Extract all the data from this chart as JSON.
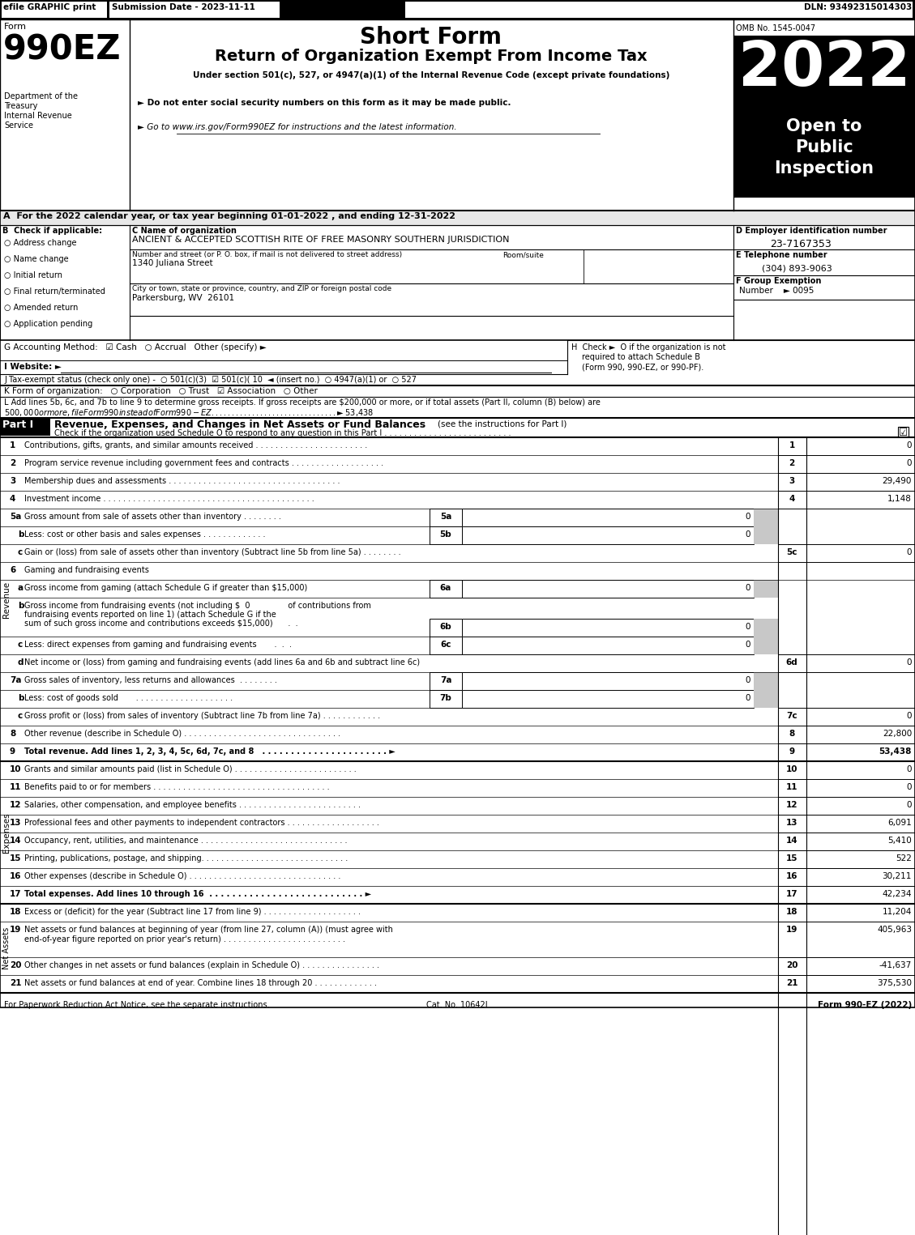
{
  "header_bar": {
    "efile": "efile GRAPHIC print",
    "submission": "Submission Date - 2023-11-11",
    "dln": "DLN: 93492315014303"
  },
  "form_title": "Short Form",
  "form_subtitle": "Return of Organization Exempt From Income Tax",
  "under_section": "Under section 501(c), 527, or 4947(a)(1) of the Internal Revenue Code (except private foundations)",
  "form_number": "990EZ",
  "year": "2022",
  "omb": "OMB No. 1545-0047",
  "dept_lines": [
    "Department of the",
    "Treasury",
    "Internal Revenue",
    "Service"
  ],
  "bullet1": "► Do not enter social security numbers on this form as it may be made public.",
  "bullet2": "► Go to www.irs.gov/Form990EZ for instructions and the latest information.",
  "section_a": "A  For the 2022 calendar year, or tax year beginning 01-01-2022 , and ending 12-31-2022",
  "checkboxes_b": [
    "Address change",
    "Name change",
    "Initial return",
    "Final return/terminated",
    "Amended return",
    "Application pending"
  ],
  "org_name": "ANCIENT & ACCEPTED SCOTTISH RITE OF FREE MASONRY SOUTHERN JURISDICTION",
  "street_label": "Number and street (or P. O. box, if mail is not delivered to street address)",
  "room_label": "Room/suite",
  "street": "1340 Juliana Street",
  "city_label": "City or town, state or province, country, and ZIP or foreign postal code",
  "city": "Parkersburg, WV  26101",
  "ein_label": "D Employer identification number",
  "ein": "23-7167353",
  "phone_label": "E Telephone number",
  "phone": "(304) 893-9063",
  "fgroup_label": "F Group Exemption",
  "group_num": "Number    ► 0095",
  "section_g": "G Accounting Method:   ☑ Cash   ○ Accrual   Other (specify) ►",
  "section_h_lines": [
    "H  Check ►  O if the organization is not",
    "required to attach Schedule B",
    "(Form 990, 990-EZ, or 990-PF)."
  ],
  "section_i": "I Website: ►",
  "section_j": "J Tax-exempt status (check only one) -  ○ 501(c)(3)  ☑ 501(c)( 10  ◄ (insert no.)  ○ 4947(a)(1) or  ○ 527",
  "section_k": "K Form of organization:   ○ Corporation   ○ Trust   ☑ Association   ○ Other",
  "section_l1": "L Add lines 5b, 6c, and 7b to line 9 to determine gross receipts. If gross receipts are $200,000 or more, or if total assets (Part II, column (B) below) are",
  "section_l2": "$500,000 or more, file Form 990 instead of Form 990-EZ . . . . . . . . . . . . . . . . . . . . . . . . . . . . . . . ► $ 53,438",
  "part1_title": "Revenue, Expenses, and Changes in Net Assets or Fund Balances",
  "part1_sub": "(see the instructions for Part I)",
  "part1_check": "Check if the organization used Schedule O to respond to any question in this Part I . . . . . . . . . . . . . . . . . . . . . . . . . .",
  "revenue_lines": [
    {
      "num": "1",
      "desc": "Contributions, gifts, grants, and similar amounts received . . . . . . . . . . . . . . . . . . . . . . .",
      "line": "1",
      "value": "0"
    },
    {
      "num": "2",
      "desc": "Program service revenue including government fees and contracts . . . . . . . . . . . . . . . . . . .",
      "line": "2",
      "value": "0"
    },
    {
      "num": "3",
      "desc": "Membership dues and assessments . . . . . . . . . . . . . . . . . . . . . . . . . . . . . . . . . . .",
      "line": "3",
      "value": "29,490"
    },
    {
      "num": "4",
      "desc": "Investment income . . . . . . . . . . . . . . . . . . . . . . . . . . . . . . . . . . . . . . . . . . .",
      "line": "4",
      "value": "1,148"
    }
  ],
  "line5a_desc": "Gross amount from sale of assets other than inventory . . . . . . . .",
  "line5b_desc": "Less: cost or other basis and sales expenses . . . . . . . . . . . . .",
  "line5c_desc": "Gain or (loss) from sale of assets other than inventory (Subtract line 5b from line 5a) . . . . . . . .",
  "line6a_desc": "Gross income from gaming (attach Schedule G if greater than $15,000)",
  "line6b1": "Gross income from fundraising events (not including $  0               of contributions from",
  "line6b2": "fundraising events reported on line 1) (attach Schedule G if the",
  "line6b3": "sum of such gross income and contributions exceeds $15,000)      .  .",
  "line6c_desc": "Less: direct expenses from gaming and fundraising events       .  .  .",
  "line6d_desc": "Net income or (loss) from gaming and fundraising events (add lines 6a and 6b and subtract line 6c)",
  "line7a_desc": "Gross sales of inventory, less returns and allowances  . . . . . . . .",
  "line7b_desc": "Less: cost of goods sold       . . . . . . . . . . . . . . . . . . . .",
  "line7c_desc": "Gross profit or (loss) from sales of inventory (Subtract line 7b from line 7a) . . . . . . . . . . . .",
  "line8_desc": "Other revenue (describe in Schedule O) . . . . . . . . . . . . . . . . . . . . . . . . . . . . . . . .",
  "line9_desc": "Total revenue. Add lines 1, 2, 3, 4, 5c, 6d, 7c, and 8   . . . . . . . . . . . . . . . . . . . . . . ►",
  "expense_lines": [
    {
      "num": "10",
      "desc": "Grants and similar amounts paid (list in Schedule O) . . . . . . . . . . . . . . . . . . . . . . . . .",
      "line": "10",
      "value": "0"
    },
    {
      "num": "11",
      "desc": "Benefits paid to or for members . . . . . . . . . . . . . . . . . . . . . . . . . . . . . . . . . . . .",
      "line": "11",
      "value": "0"
    },
    {
      "num": "12",
      "desc": "Salaries, other compensation, and employee benefits . . . . . . . . . . . . . . . . . . . . . . . . .",
      "line": "12",
      "value": "0"
    },
    {
      "num": "13",
      "desc": "Professional fees and other payments to independent contractors . . . . . . . . . . . . . . . . . . .",
      "line": "13",
      "value": "6,091"
    },
    {
      "num": "14",
      "desc": "Occupancy, rent, utilities, and maintenance . . . . . . . . . . . . . . . . . . . . . . . . . . . . . .",
      "line": "14",
      "value": "5,410"
    },
    {
      "num": "15",
      "desc": "Printing, publications, postage, and shipping. . . . . . . . . . . . . . . . . . . . . . . . . . . . . .",
      "line": "15",
      "value": "522"
    },
    {
      "num": "16",
      "desc": "Other expenses (describe in Schedule O) . . . . . . . . . . . . . . . . . . . . . . . . . . . . . . .",
      "line": "16",
      "value": "30,211"
    },
    {
      "num": "17",
      "desc": "Total expenses. Add lines 10 through 16  . . . . . . . . . . . . . . . . . . . . . . . . . . . ►",
      "line": "17",
      "value": "42,234"
    }
  ],
  "netasset_lines": [
    {
      "num": "18",
      "desc": "Excess or (deficit) for the year (Subtract line 17 from line 9) . . . . . . . . . . . . . . . . . . . .",
      "line": "18",
      "value": "11,204",
      "tall": false
    },
    {
      "num": "19",
      "desc1": "Net assets or fund balances at beginning of year (from line 27, column (A)) (must agree with",
      "desc2": "end-of-year figure reported on prior year's return) . . . . . . . . . . . . . . . . . . . . . . . . .",
      "line": "19",
      "value": "405,963",
      "tall": true
    },
    {
      "num": "20",
      "desc": "Other changes in net assets or fund balances (explain in Schedule O) . . . . . . . . . . . . . . . .",
      "line": "20",
      "value": "-41,637",
      "tall": false
    },
    {
      "num": "21",
      "desc": "Net assets or fund balances at end of year. Combine lines 18 through 20 . . . . . . . . . . . . .",
      "line": "21",
      "value": "375,530",
      "tall": false
    }
  ],
  "footer_left": "For Paperwork Reduction Act Notice, see the separate instructions.",
  "footer_cat": "Cat. No. 10642I",
  "footer_right": "Form 990-EZ (2022)",
  "gray": "#c8c8c8",
  "light_gray": "#e8e8e8",
  "black": "#000000",
  "white": "#ffffff"
}
